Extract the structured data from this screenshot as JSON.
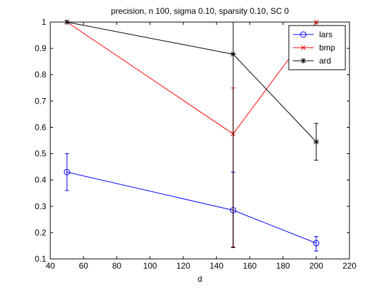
{
  "chart_data": {
    "type": "line",
    "title": "precision, n 100, sigma 0.10, sparsity 0.10, SC 0",
    "xlabel": "d",
    "ylabel": "",
    "xlim": [
      40,
      220
    ],
    "ylim": [
      0.1,
      1
    ],
    "xticks": [
      40,
      60,
      80,
      100,
      120,
      140,
      160,
      180,
      200,
      220
    ],
    "yticks": [
      0.1,
      0.2,
      0.3,
      0.4,
      0.5,
      0.6,
      0.7,
      0.8,
      0.9,
      1
    ],
    "grid": false,
    "legend_position": "top-right",
    "series": [
      {
        "name": "lars",
        "color": "#0000ff",
        "marker": "circle",
        "x": [
          50,
          150,
          200
        ],
        "y": [
          0.43,
          0.285,
          0.16
        ],
        "err_low": [
          0.07,
          0.14,
          0.03
        ],
        "err_high": [
          0.07,
          0.145,
          0.025
        ]
      },
      {
        "name": "bmp",
        "color": "#ff0000",
        "marker": "x",
        "x": [
          50,
          150,
          200
        ],
        "y": [
          1.0,
          0.575,
          1.0
        ],
        "err_low": [
          0,
          0.43,
          0
        ],
        "err_high": [
          0,
          0.175,
          0
        ]
      },
      {
        "name": "ard",
        "color": "#000000",
        "marker": "star",
        "x": [
          50,
          150,
          200
        ],
        "y": [
          1.0,
          0.878,
          0.545
        ],
        "err_low": [
          0,
          0.735,
          0.07
        ],
        "err_high": [
          0,
          0.122,
          0.07
        ]
      }
    ]
  }
}
